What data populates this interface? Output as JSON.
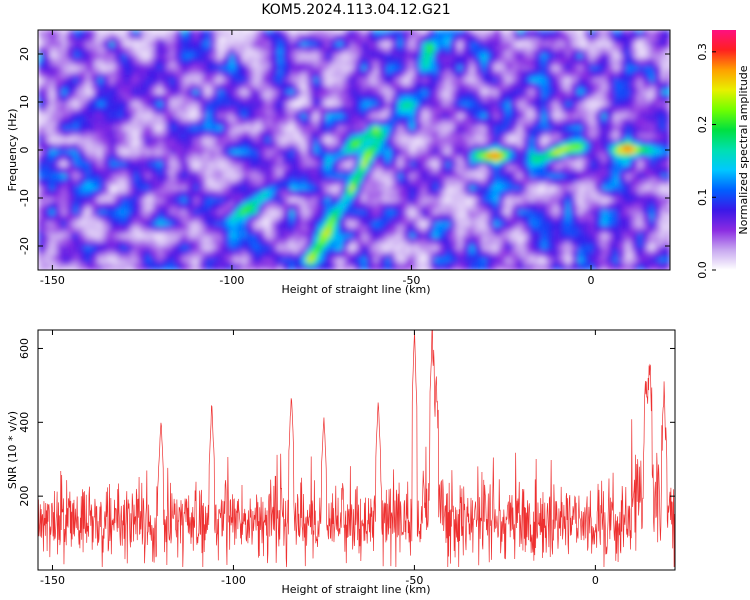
{
  "chart_data": [
    {
      "type": "heatmap",
      "title": "KOM5.2024.113.04.12.G21",
      "xlabel": "Height of straight line (km)",
      "ylabel": "Frequency (Hz)",
      "xlim": [
        -154,
        22
      ],
      "ylim": [
        -25,
        25
      ],
      "x_ticks": [
        -150,
        -100,
        -50,
        0
      ],
      "y_ticks": [
        -20,
        -10,
        0,
        10,
        20
      ],
      "colorbar": {
        "label": "Normalized spectral amplitude",
        "range": [
          0,
          0.33
        ],
        "ticks": [
          0.0,
          0.1,
          0.2,
          0.3
        ],
        "colors": [
          "#ffffff",
          "#c8a8f0",
          "#8a2be2",
          "#3a18e8",
          "#0060ff",
          "#00c8ff",
          "#00e0b0",
          "#00e040",
          "#70ff00",
          "#e8f000",
          "#ffa000",
          "#ff2020",
          "#ff1080"
        ]
      },
      "features": [
        {
          "name": "rising track",
          "points": [
            [
              -78,
              -23
            ],
            [
              -75,
              -20
            ],
            [
              -70,
              -13
            ],
            [
              -66,
              -8.5
            ],
            [
              -61,
              -1
            ],
            [
              -57,
              3
            ],
            [
              -51,
              9
            ],
            [
              -47,
              14
            ],
            [
              -44,
              21
            ]
          ],
          "peak": 0.33
        },
        {
          "name": "horizontal band",
          "points": [
            [
              -32,
              -1
            ],
            [
              -18,
              -2
            ],
            [
              -5,
              0.5
            ],
            [
              5,
              0.8
            ],
            [
              12,
              0
            ],
            [
              20,
              -0.3
            ]
          ],
          "peak": 0.22
        },
        {
          "name": "lower left descending",
          "points": [
            [
              -100,
              -14
            ],
            [
              -92,
              -10
            ],
            [
              -83,
              -6
            ],
            [
              -75,
              -3
            ],
            [
              -66,
              1
            ],
            [
              -60,
              4
            ]
          ],
          "peak": 0.14
        }
      ]
    },
    {
      "type": "line",
      "xlabel": "Height of straight line (km)",
      "ylabel": "SNR (10 * v/v)",
      "xlim": [
        -154,
        22
      ],
      "ylim": [
        0,
        650
      ],
      "x_ticks": [
        -150,
        -100,
        -50,
        0
      ],
      "y_ticks": [
        200,
        400,
        600
      ],
      "color": "#ee3030",
      "baseline": {
        "mean": 130,
        "spread": 120
      },
      "peaks": [
        {
          "x": -50,
          "y": 650
        },
        {
          "x": -45,
          "y": 588
        },
        {
          "x": -44,
          "y": 440
        },
        {
          "x": -84,
          "y": 480
        },
        {
          "x": -106,
          "y": 450
        },
        {
          "x": -60,
          "y": 462
        },
        {
          "x": -75,
          "y": 412
        },
        {
          "x": 15,
          "y": 540
        },
        {
          "x": 14,
          "y": 470
        },
        {
          "x": 19,
          "y": 420
        },
        {
          "x": -120,
          "y": 405
        },
        {
          "x": -155,
          "y": 300
        }
      ]
    }
  ]
}
